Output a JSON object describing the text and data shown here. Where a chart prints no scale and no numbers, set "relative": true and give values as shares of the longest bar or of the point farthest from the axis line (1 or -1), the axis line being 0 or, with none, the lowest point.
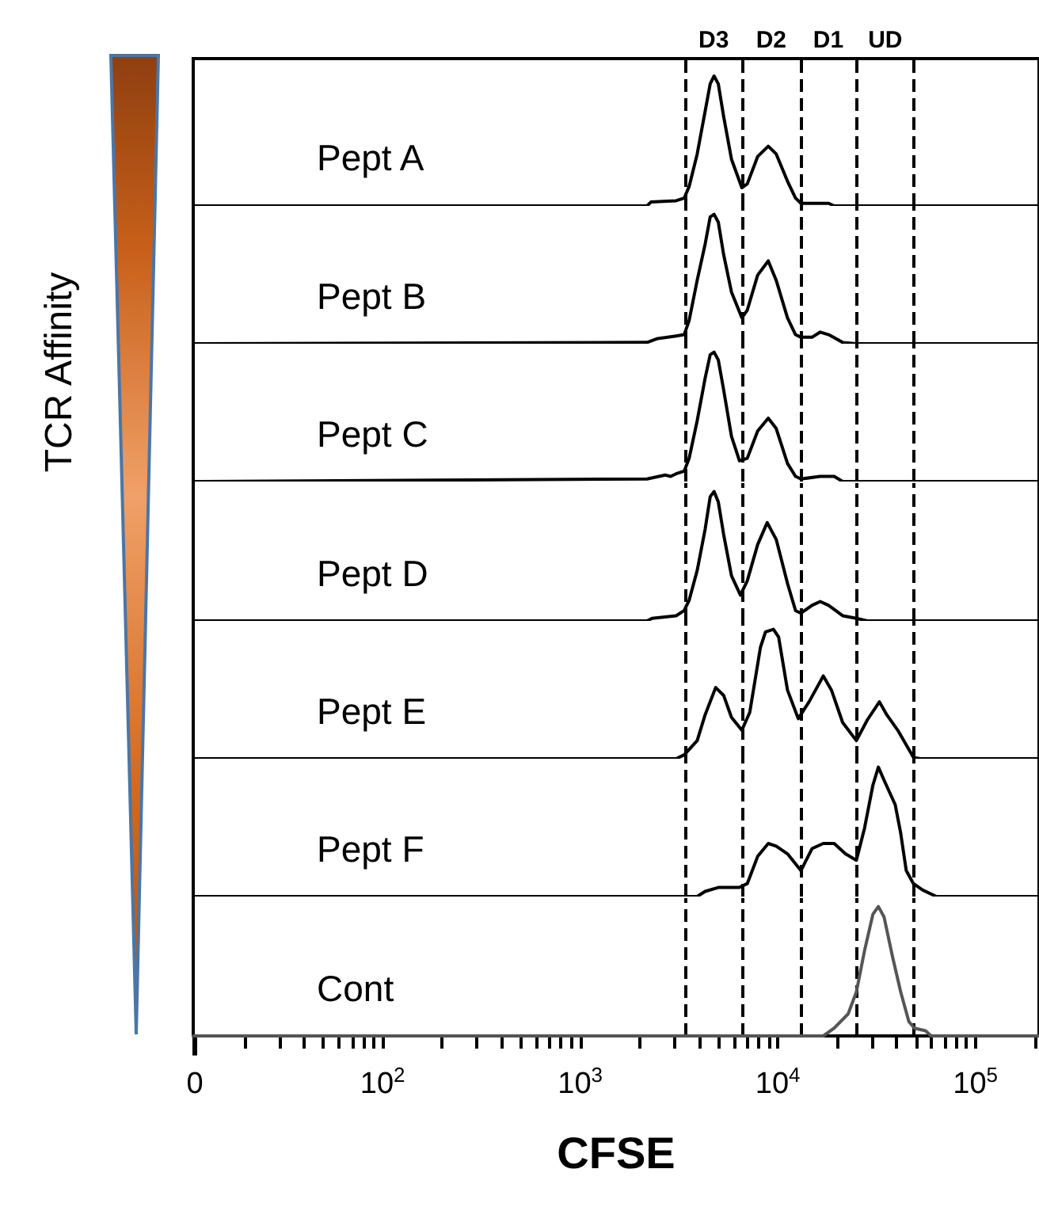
{
  "chart_data": [
    {
      "type": "line",
      "relative": true,
      "log": "x",
      "xlim": [
        0,
        210000
      ],
      "tick_labels": false,
      "ylabel": "TCR Affinity",
      "annotations": [
        "D3",
        "D2",
        "D1",
        "UD"
      ],
      "ref_lines": [
        {
          "axis": "x",
          "value": 3400,
          "color": "#000000",
          "line_style": "dashed"
        },
        {
          "axis": "x",
          "value": 6600,
          "color": "#000000",
          "line_style": "dashed"
        },
        {
          "axis": "x",
          "value": 13000,
          "color": "#000000",
          "line_style": "dashed"
        },
        {
          "axis": "x",
          "value": 25000,
          "color": "#000000",
          "line_style": "dashed"
        },
        {
          "axis": "x",
          "value": 49000,
          "color": "#000000",
          "line_style": "dashed"
        }
      ],
      "series": [
        {
          "name": "Pept A",
          "color": "#000000",
          "x": [
            11,
            2180,
            2280,
            3060,
            3360,
            3560,
            3910,
            4290,
            4550,
            4760,
            5000,
            5320,
            5830,
            6580,
            7010,
            7910,
            8950,
            9820,
            11200,
            12300,
            13100,
            18100,
            19300,
            210000
          ],
          "values": [
            0,
            0,
            0.03,
            0.04,
            0.06,
            0.15,
            0.4,
            0.73,
            0.94,
            1,
            0.94,
            0.69,
            0.36,
            0.14,
            0.17,
            0.38,
            0.46,
            0.4,
            0.19,
            0.06,
            0.02,
            0.02,
            0,
            0
          ]
        }
      ]
    },
    {
      "type": "line",
      "relative": true,
      "log": "x",
      "xlim": [
        0,
        210000
      ],
      "tick_labels": false,
      "ref_lines": [
        {
          "axis": "x",
          "value": 3400,
          "color": "#000000",
          "line_style": "dashed"
        },
        {
          "axis": "x",
          "value": 6600,
          "color": "#000000",
          "line_style": "dashed"
        },
        {
          "axis": "x",
          "value": 13000,
          "color": "#000000",
          "line_style": "dashed"
        },
        {
          "axis": "x",
          "value": 25000,
          "color": "#000000",
          "line_style": "dashed"
        },
        {
          "axis": "x",
          "value": 49000,
          "color": "#000000",
          "line_style": "dashed"
        }
      ],
      "series": [
        {
          "name": "Pept B",
          "color": "#000000",
          "x": [
            11,
            2180,
            2470,
            3060,
            3360,
            3560,
            3910,
            4290,
            4550,
            4760,
            5000,
            5320,
            5830,
            6580,
            7010,
            7910,
            8950,
            9820,
            11200,
            12300,
            13100,
            14900,
            16400,
            18100,
            21300,
            25000,
            210000
          ],
          "values": [
            0,
            0.01,
            0.04,
            0.06,
            0.07,
            0.18,
            0.49,
            0.77,
            0.98,
            1,
            0.94,
            0.69,
            0.4,
            0.2,
            0.26,
            0.53,
            0.64,
            0.49,
            0.2,
            0.07,
            0.05,
            0.05,
            0.09,
            0.07,
            0.01,
            0,
            0
          ]
        }
      ]
    },
    {
      "type": "line",
      "relative": true,
      "log": "x",
      "xlim": [
        0,
        210000
      ],
      "tick_labels": false,
      "ref_lines": [
        {
          "axis": "x",
          "value": 3400,
          "color": "#000000",
          "line_style": "dashed"
        },
        {
          "axis": "x",
          "value": 6600,
          "color": "#000000",
          "line_style": "dashed"
        },
        {
          "axis": "x",
          "value": 13000,
          "color": "#000000",
          "line_style": "dashed"
        },
        {
          "axis": "x",
          "value": 25000,
          "color": "#000000",
          "line_style": "dashed"
        },
        {
          "axis": "x",
          "value": 49000,
          "color": "#000000",
          "line_style": "dashed"
        }
      ],
      "series": [
        {
          "name": "Pept C",
          "color": "#000000",
          "x": [
            11,
            2180,
            2700,
            2870,
            3060,
            3360,
            3560,
            3910,
            4290,
            4550,
            4760,
            5000,
            5320,
            5830,
            6400,
            7010,
            7910,
            8950,
            9820,
            11200,
            12300,
            13100,
            16400,
            19300,
            21300,
            210000
          ],
          "values": [
            0,
            0.02,
            0.05,
            0.04,
            0.06,
            0.08,
            0.18,
            0.47,
            0.8,
            0.98,
            1,
            0.94,
            0.71,
            0.35,
            0.16,
            0.18,
            0.39,
            0.49,
            0.41,
            0.14,
            0.04,
            0.02,
            0.04,
            0.04,
            0,
            0
          ]
        }
      ]
    },
    {
      "type": "line",
      "relative": true,
      "log": "x",
      "xlim": [
        0,
        210000
      ],
      "tick_labels": false,
      "ref_lines": [
        {
          "axis": "x",
          "value": 3400,
          "color": "#000000",
          "line_style": "dashed"
        },
        {
          "axis": "x",
          "value": 6600,
          "color": "#000000",
          "line_style": "dashed"
        },
        {
          "axis": "x",
          "value": 13000,
          "color": "#000000",
          "line_style": "dashed"
        },
        {
          "axis": "x",
          "value": 25000,
          "color": "#000000",
          "line_style": "dashed"
        },
        {
          "axis": "x",
          "value": 49000,
          "color": "#000000",
          "line_style": "dashed"
        }
      ],
      "series": [
        {
          "name": "Pept D",
          "color": "#000000",
          "x": [
            11,
            2180,
            2310,
            3060,
            3360,
            3560,
            3910,
            4290,
            4550,
            4760,
            5000,
            5320,
            5830,
            6470,
            7010,
            7910,
            8840,
            9820,
            11200,
            12300,
            13100,
            14900,
            16400,
            18100,
            21300,
            25000,
            28400,
            210000
          ],
          "values": [
            0,
            0,
            0.02,
            0.04,
            0.08,
            0.16,
            0.39,
            0.71,
            0.96,
            1,
            0.92,
            0.67,
            0.35,
            0.2,
            0.31,
            0.59,
            0.76,
            0.63,
            0.29,
            0.08,
            0.06,
            0.12,
            0.15,
            0.12,
            0.04,
            0.02,
            0,
            0
          ]
        }
      ]
    },
    {
      "type": "line",
      "relative": true,
      "log": "x",
      "xlim": [
        0,
        210000
      ],
      "tick_labels": false,
      "ref_lines": [
        {
          "axis": "x",
          "value": 3400,
          "color": "#000000",
          "line_style": "dashed"
        },
        {
          "axis": "x",
          "value": 6600,
          "color": "#000000",
          "line_style": "dashed"
        },
        {
          "axis": "x",
          "value": 13000,
          "color": "#000000",
          "line_style": "dashed"
        },
        {
          "axis": "x",
          "value": 25000,
          "color": "#000000",
          "line_style": "dashed"
        },
        {
          "axis": "x",
          "value": 49000,
          "color": "#000000",
          "line_style": "dashed"
        }
      ],
      "series": [
        {
          "name": "Pept E",
          "color": "#000000",
          "x": [
            11,
            3060,
            3360,
            3910,
            4290,
            4850,
            5320,
            5830,
            6580,
            7220,
            8170,
            8670,
            9510,
            10100,
            11200,
            12700,
            14400,
            17000,
            18700,
            21300,
            25000,
            28400,
            32700,
            35600,
            40500,
            48600,
            52500,
            210000
          ],
          "values": [
            0,
            0,
            0.03,
            0.14,
            0.34,
            0.55,
            0.49,
            0.32,
            0.22,
            0.36,
            0.86,
            0.98,
            1,
            0.94,
            0.53,
            0.31,
            0.44,
            0.64,
            0.53,
            0.28,
            0.14,
            0.3,
            0.44,
            0.34,
            0.22,
            0.01,
            0,
            0
          ]
        }
      ]
    },
    {
      "type": "line",
      "relative": true,
      "log": "x",
      "xlim": [
        0,
        210000
      ],
      "tick_labels": false,
      "ref_lines": [
        {
          "axis": "x",
          "value": 3400,
          "color": "#000000",
          "line_style": "dashed"
        },
        {
          "axis": "x",
          "value": 6600,
          "color": "#000000",
          "line_style": "dashed"
        },
        {
          "axis": "x",
          "value": 13000,
          "color": "#000000",
          "line_style": "dashed"
        },
        {
          "axis": "x",
          "value": 25000,
          "color": "#000000",
          "line_style": "dashed"
        },
        {
          "axis": "x",
          "value": 49000,
          "color": "#000000",
          "line_style": "dashed"
        }
      ],
      "series": [
        {
          "name": "Pept F",
          "color": "#000000",
          "x": [
            11,
            3910,
            4290,
            5000,
            6390,
            7010,
            7910,
            8950,
            9820,
            11200,
            13100,
            14900,
            17000,
            19300,
            22000,
            25000,
            27500,
            30300,
            32300,
            34500,
            39300,
            41900,
            44700,
            48600,
            54200,
            63600,
            210000
          ],
          "values": [
            0,
            0,
            0.04,
            0.07,
            0.07,
            0.1,
            0.31,
            0.41,
            0.39,
            0.33,
            0.2,
            0.37,
            0.41,
            0.41,
            0.33,
            0.28,
            0.53,
            0.86,
            1,
            0.9,
            0.71,
            0.49,
            0.2,
            0.1,
            0.05,
            0,
            0
          ]
        }
      ]
    },
    {
      "type": "line",
      "relative": true,
      "log": "x",
      "xlim": [
        0,
        210000
      ],
      "tick_labels": "x",
      "xlabel": "CFSE",
      "xticks": [
        {
          "value": 0,
          "label": "0"
        },
        {
          "value": 20,
          "label": null
        },
        {
          "value": 30,
          "label": null
        },
        {
          "value": 40,
          "label": null
        },
        {
          "value": 50,
          "label": null
        },
        {
          "value": 60,
          "label": null
        },
        {
          "value": 70,
          "label": null
        },
        {
          "value": 80,
          "label": null
        },
        {
          "value": 90,
          "label": null
        },
        {
          "value": 100,
          "label": "10$^{2}$"
        },
        {
          "value": 200,
          "label": null
        },
        {
          "value": 300,
          "label": null
        },
        {
          "value": 400,
          "label": null
        },
        {
          "value": 500,
          "label": null
        },
        {
          "value": 600,
          "label": null
        },
        {
          "value": 700,
          "label": null
        },
        {
          "value": 800,
          "label": null
        },
        {
          "value": 900,
          "label": null
        },
        {
          "value": 1000,
          "label": "10$^{3}$"
        },
        {
          "value": 2000,
          "label": null
        },
        {
          "value": 3000,
          "label": null
        },
        {
          "value": 4000,
          "label": null
        },
        {
          "value": 5000,
          "label": null
        },
        {
          "value": 6000,
          "label": null
        },
        {
          "value": 7000,
          "label": null
        },
        {
          "value": 8000,
          "label": null
        },
        {
          "value": 9000,
          "label": null
        },
        {
          "value": 10000,
          "label": "10$^{4}$"
        },
        {
          "value": 20000,
          "label": null
        },
        {
          "value": 30000,
          "label": null
        },
        {
          "value": 40000,
          "label": null
        },
        {
          "value": 50000,
          "label": null
        },
        {
          "value": 60000,
          "label": null
        },
        {
          "value": 70000,
          "label": null
        },
        {
          "value": 80000,
          "label": null
        },
        {
          "value": 90000,
          "label": null
        },
        {
          "value": 100000,
          "label": "10$^{5}$"
        },
        {
          "value": 200000,
          "label": null
        }
      ],
      "ref_lines": [
        {
          "axis": "x",
          "value": 3400,
          "color": "#000000",
          "line_style": "dashed"
        },
        {
          "axis": "x",
          "value": 6600,
          "color": "#000000",
          "line_style": "dashed"
        },
        {
          "axis": "x",
          "value": 13000,
          "color": "#000000",
          "line_style": "dashed"
        },
        {
          "axis": "x",
          "value": 25000,
          "color": "#000000",
          "line_style": "dashed"
        },
        {
          "axis": "x",
          "value": 49000,
          "color": "#000000",
          "line_style": "dashed"
        }
      ],
      "series": [
        {
          "name": "Cont",
          "color": "#555555",
          "x": [
            11,
            17000,
            19300,
            22700,
            25000,
            27500,
            30300,
            32300,
            34500,
            38000,
            41900,
            46100,
            49200,
            56000,
            59700,
            210000
          ],
          "values": [
            0,
            0,
            0.06,
            0.17,
            0.34,
            0.66,
            0.94,
            1,
            0.92,
            0.62,
            0.34,
            0.11,
            0.06,
            0.04,
            0,
            0
          ]
        }
      ]
    }
  ]
}
